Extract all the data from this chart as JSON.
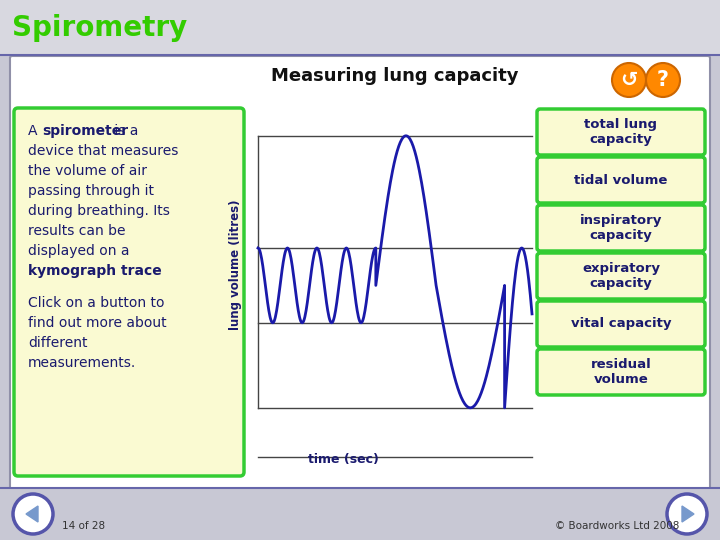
{
  "title": "Spirometry",
  "chart_title": "Measuring lung capacity",
  "header_bg": "#d8d8e0",
  "main_bg": "#e8e8ee",
  "content_bg": "#ffffff",
  "footer_bg": "#f0f0f0",
  "left_box_bg": "#fafad2",
  "left_box_border": "#33cc33",
  "right_buttons": [
    "total lung\ncapacity",
    "tidal volume",
    "inspiratory\ncapacity",
    "expiratory\ncapacity",
    "vital capacity",
    "residual\nvolume"
  ],
  "button_bg": "#fafad2",
  "button_border": "#33cc33",
  "xlabel": "time (sec)",
  "ylabel": "lung volume (litres)",
  "curve_color": "#1a1aaa",
  "line_color": "#333333",
  "title_color": "#33cc00",
  "title_text_color": "#1a1a80",
  "footer_text_left": "14 of 28",
  "footer_text_right": "© Boardworks Ltd 2008",
  "outer_bg": "#c8c8d4",
  "border_color": "#9090a8"
}
